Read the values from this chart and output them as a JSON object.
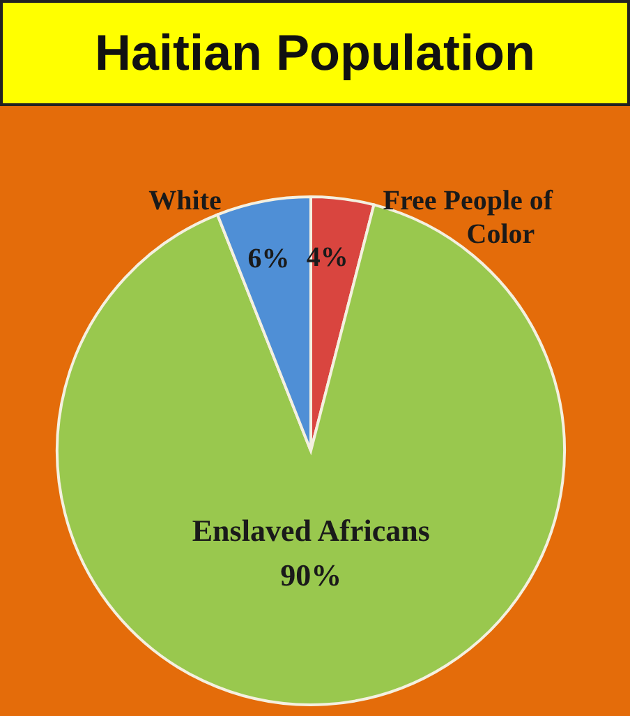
{
  "chart_data": {
    "type": "pie",
    "title": "Haitian Population",
    "categories": [
      "Free People of Color",
      "Enslaved Africans",
      "White"
    ],
    "values": [
      4,
      90,
      6
    ],
    "colors": [
      "#d9453f",
      "#99c84e",
      "#4f8fd6"
    ],
    "value_labels": [
      "4%",
      "90%",
      "6%"
    ]
  }
}
